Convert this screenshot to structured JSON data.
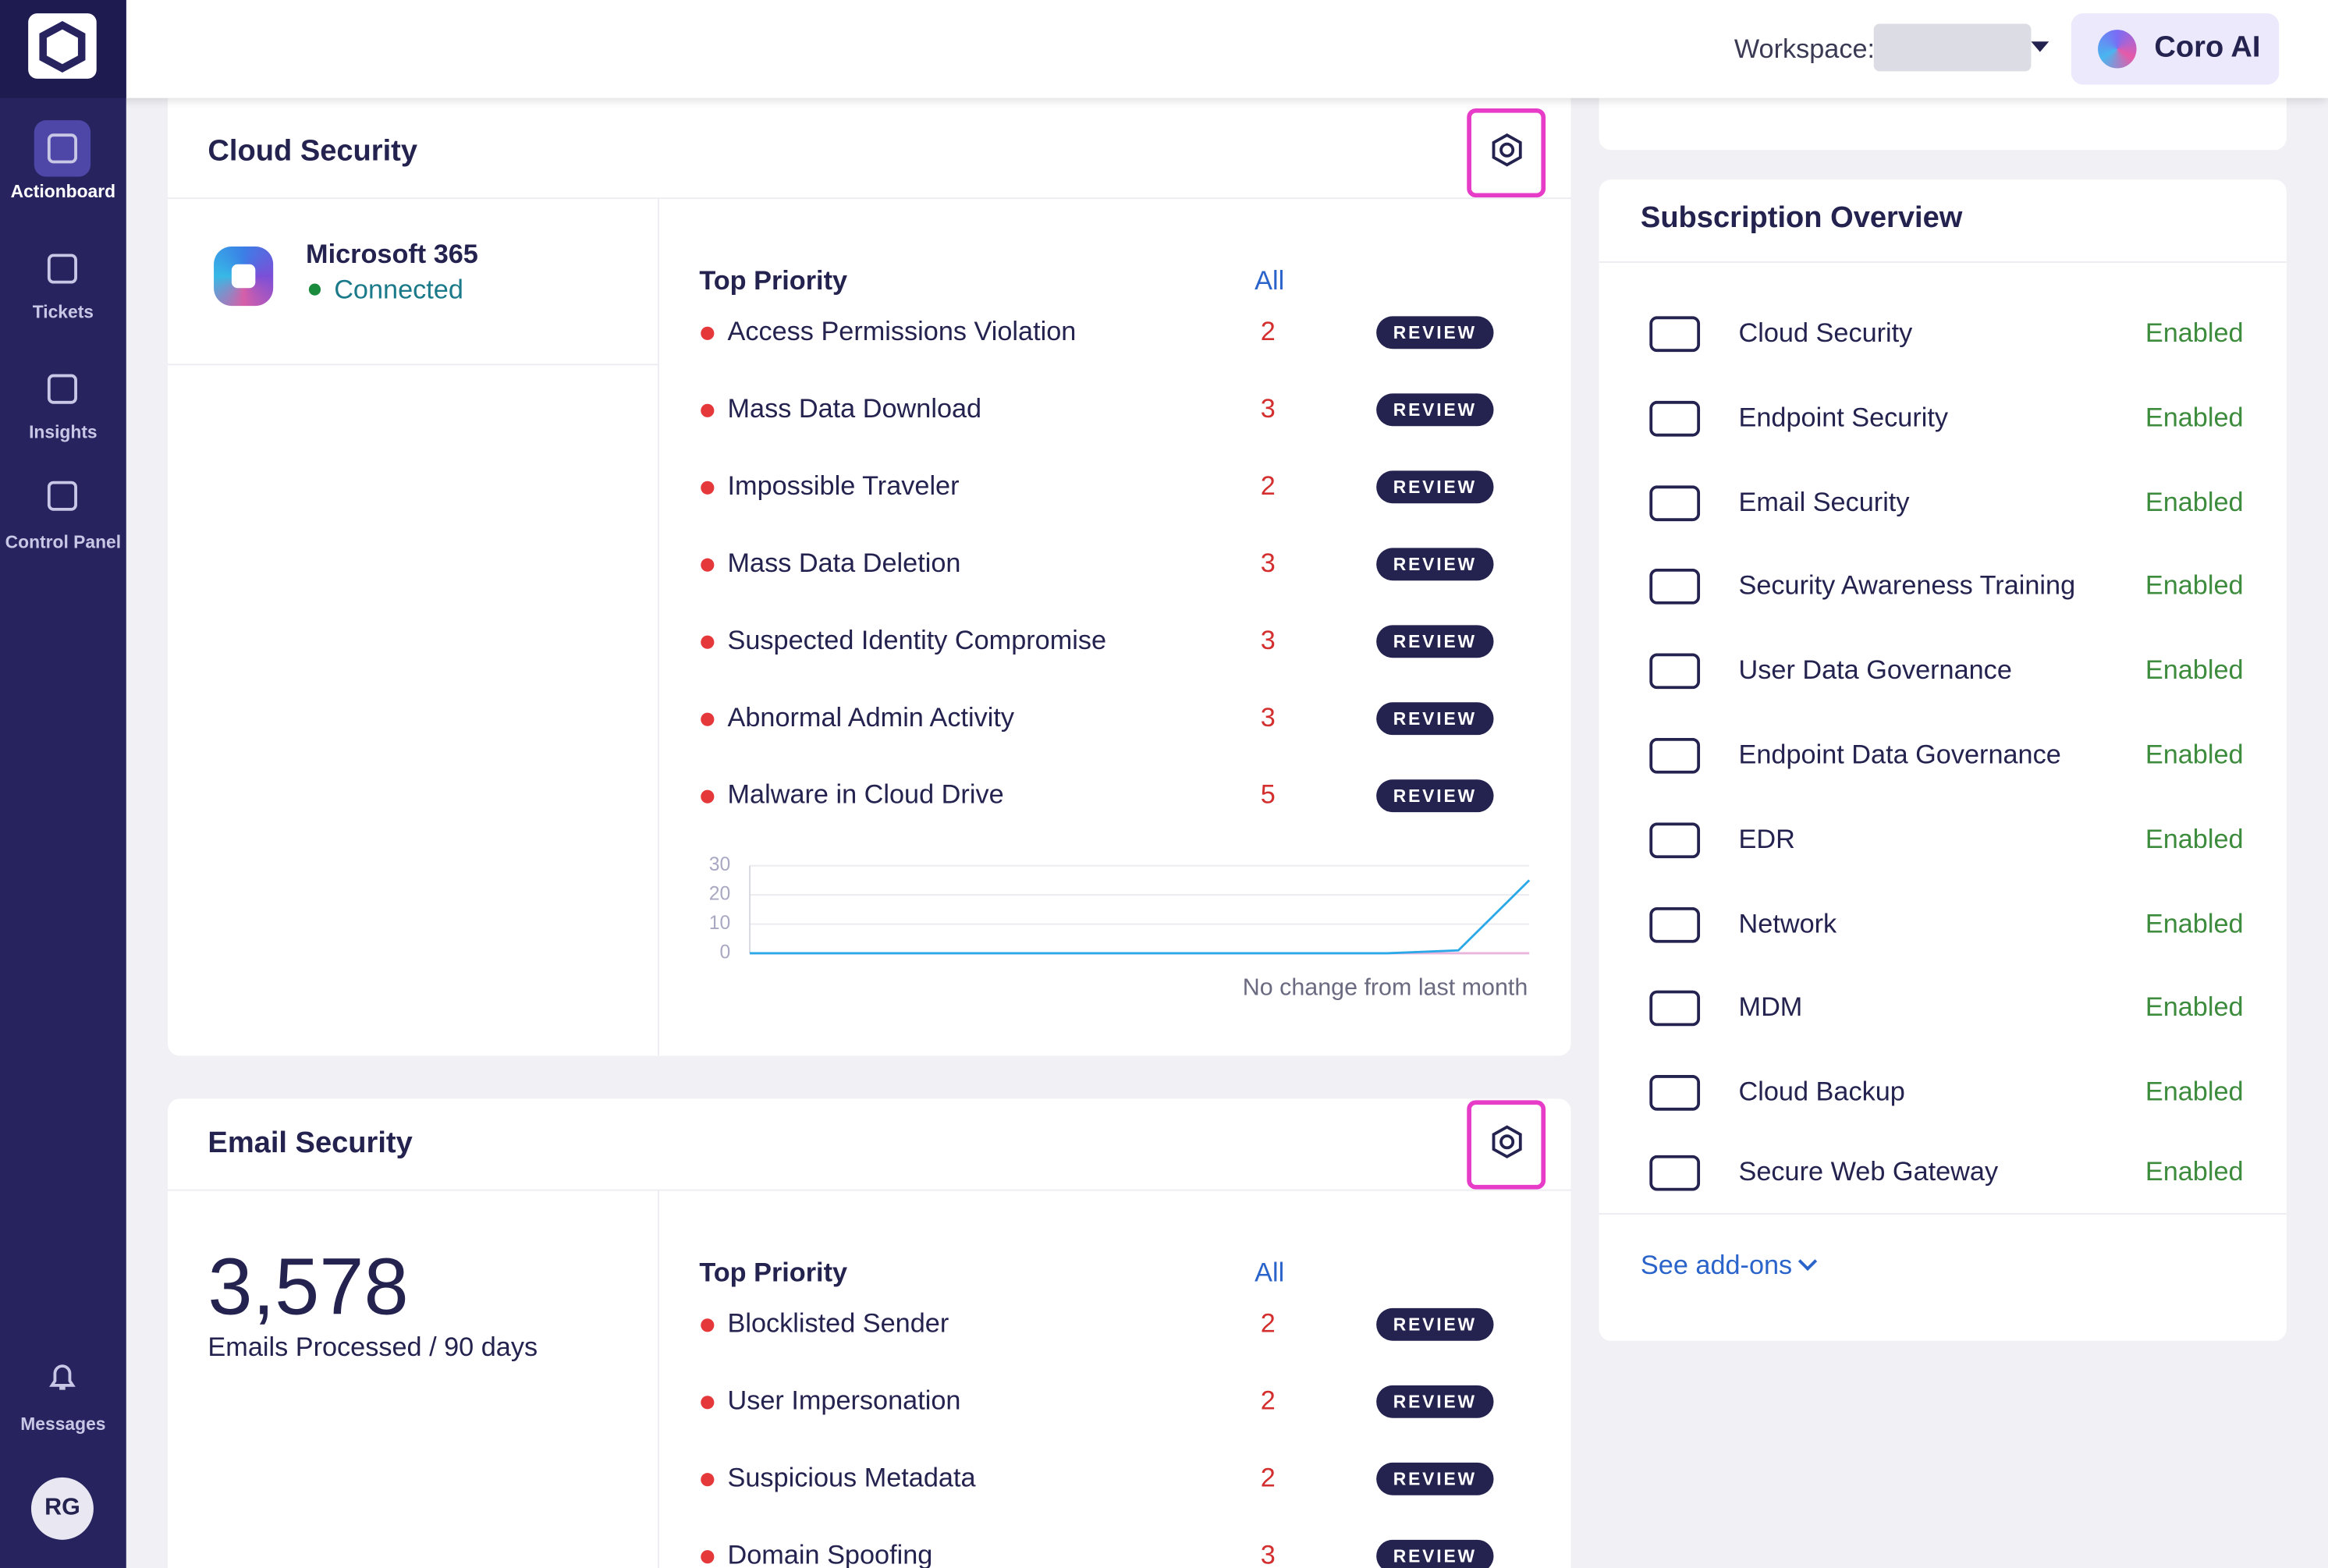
{
  "sidebar": {
    "items": [
      {
        "label": "Actionboard"
      },
      {
        "label": "Tickets"
      },
      {
        "label": "Insights"
      },
      {
        "label": "Control Panel"
      }
    ],
    "messages": "Messages",
    "avatar": "RG"
  },
  "header": {
    "workspace_label": "Workspace:",
    "ai_button": "Coro AI"
  },
  "review_label": "REVIEW",
  "cloud_security": {
    "title": "Cloud Security",
    "app": "Microsoft 365",
    "status": "Connected",
    "top_priority": "Top Priority",
    "all_link": "All",
    "items": [
      {
        "name": "Access Permissions Violation",
        "count": 2
      },
      {
        "name": "Mass Data Download",
        "count": 3
      },
      {
        "name": "Impossible Traveler",
        "count": 2
      },
      {
        "name": "Mass Data Deletion",
        "count": 3
      },
      {
        "name": "Suspected Identity Compromise",
        "count": 3
      },
      {
        "name": "Abnormal Admin Activity",
        "count": 3
      },
      {
        "name": "Malware in Cloud Drive",
        "count": 5
      }
    ],
    "trend": {
      "type": "line",
      "ylim": [
        0,
        30
      ],
      "yticks": [
        0,
        10,
        20,
        30
      ],
      "series": [
        {
          "color": "#e8b4dc",
          "values": [
            0,
            0,
            0,
            0,
            0,
            0,
            0,
            0,
            0,
            0,
            0,
            0
          ]
        },
        {
          "color": "#2aa8e8",
          "values": [
            0,
            0,
            0,
            0,
            0,
            0,
            0,
            0,
            0,
            0,
            1,
            25
          ]
        }
      ]
    },
    "trend_note": "No change from last month"
  },
  "email_security": {
    "title": "Email Security",
    "count": "3,578",
    "count_label": "Emails Processed / 90 days",
    "top_priority": "Top Priority",
    "all_link": "All",
    "items": [
      {
        "name": "Blocklisted Sender",
        "count": 2
      },
      {
        "name": "User Impersonation",
        "count": 2
      },
      {
        "name": "Suspicious Metadata",
        "count": 2
      },
      {
        "name": "Domain Spoofing",
        "count": 3
      }
    ]
  },
  "subscription": {
    "title": "Subscription Overview",
    "items": [
      {
        "name": "Cloud Security",
        "status": "Enabled"
      },
      {
        "name": "Endpoint Security",
        "status": "Enabled"
      },
      {
        "name": "Email Security",
        "status": "Enabled"
      },
      {
        "name": "Security Awareness Training",
        "status": "Enabled"
      },
      {
        "name": "User Data Governance",
        "status": "Enabled"
      },
      {
        "name": "Endpoint Data Governance",
        "status": "Enabled"
      },
      {
        "name": "EDR",
        "status": "Enabled"
      },
      {
        "name": "Network",
        "status": "Enabled"
      },
      {
        "name": "MDM",
        "status": "Enabled"
      },
      {
        "name": "Cloud Backup",
        "status": "Enabled"
      },
      {
        "name": "Secure Web Gateway",
        "status": "Enabled"
      }
    ],
    "see_addons": "See add-ons"
  }
}
